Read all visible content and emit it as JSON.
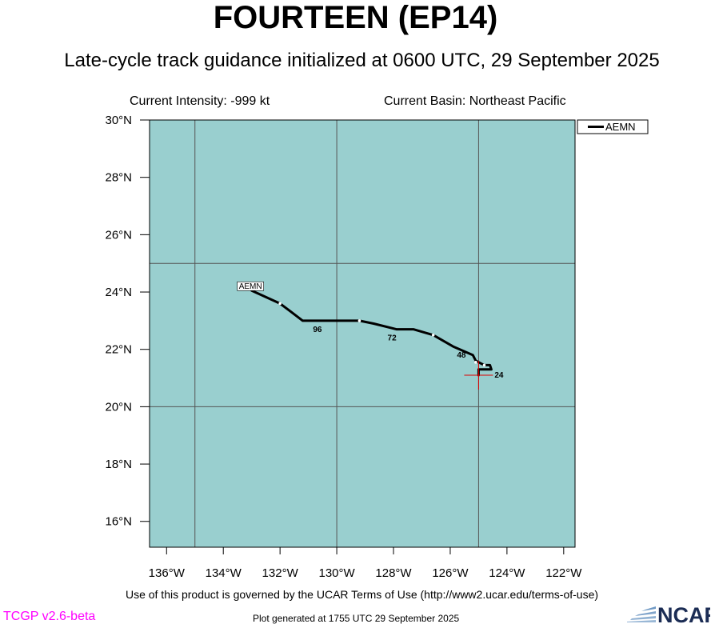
{
  "header": {
    "title": "FOURTEEN (EP14)",
    "subtitle": "Late-cycle track guidance initialized at 0600 UTC, 29 September 2025",
    "intensity": "Current Intensity: -999 kt",
    "basin": "Current Basin: Northeast Pacific"
  },
  "footer": {
    "terms": "Use of this product is governed by the UCAR Terms of Use (http://www2.ucar.edu/terms-of-use)",
    "version": "TCGP v2.6-beta",
    "generated": "Plot generated at 1755 UTC   29 September 2025",
    "logo_text": "NCAR"
  },
  "chart_data": {
    "type": "line",
    "xlim": [
      -136.6,
      -121.6
    ],
    "ylim": [
      15.1,
      30.0
    ],
    "x_ticks": [
      {
        "value": -136,
        "label": "136°W"
      },
      {
        "value": -134,
        "label": "134°W"
      },
      {
        "value": -132,
        "label": "132°W"
      },
      {
        "value": -130,
        "label": "130°W"
      },
      {
        "value": -128,
        "label": "128°W"
      },
      {
        "value": -126,
        "label": "126°W"
      },
      {
        "value": -124,
        "label": "124°W"
      },
      {
        "value": -122,
        "label": "122°W"
      }
    ],
    "y_ticks": [
      {
        "value": 30,
        "label": "30°N"
      },
      {
        "value": 28,
        "label": "28°N"
      },
      {
        "value": 26,
        "label": "26°N"
      },
      {
        "value": 24,
        "label": "24°N"
      },
      {
        "value": 22,
        "label": "22°N"
      },
      {
        "value": 20,
        "label": "20°N"
      },
      {
        "value": 18,
        "label": "18°N"
      },
      {
        "value": 16,
        "label": "16°N"
      }
    ],
    "grid_lon": [
      -135,
      -130,
      -125
    ],
    "grid_lat": [
      25,
      20
    ],
    "grid": true,
    "legend_position": "top-right, outside plot",
    "colors": {
      "ocean": "#99cfcf",
      "track": "#000000",
      "grid": "#555555",
      "current_position": "#dd0000"
    },
    "current_position": {
      "lon": -125.0,
      "lat": 21.1
    },
    "series": [
      {
        "name": "AEMN",
        "label": "AEMN",
        "points": [
          {
            "lon": -125.0,
            "lat": 21.1
          },
          {
            "lon": -125.0,
            "lat": 21.3
          },
          {
            "lon": -124.55,
            "lat": 21.3
          },
          {
            "lon": -124.6,
            "lat": 21.45
          },
          {
            "lon": -124.8,
            "lat": 21.45
          },
          {
            "lon": -125.1,
            "lat": 21.6
          },
          {
            "lon": -125.2,
            "lat": 21.8
          },
          {
            "lon": -125.9,
            "lat": 22.1
          },
          {
            "lon": -126.6,
            "lat": 22.5
          },
          {
            "lon": -127.3,
            "lat": 22.7
          },
          {
            "lon": -127.9,
            "lat": 22.7
          },
          {
            "lon": -128.7,
            "lat": 22.9
          },
          {
            "lon": -129.2,
            "lat": 23.0
          },
          {
            "lon": -130.5,
            "lat": 23.0
          },
          {
            "lon": -131.2,
            "lat": 23.0
          },
          {
            "lon": -131.6,
            "lat": 23.3
          },
          {
            "lon": -132.0,
            "lat": 23.6
          },
          {
            "lon": -133.0,
            "lat": 24.05
          }
        ],
        "markers": [
          {
            "lon": -124.55,
            "lat": 21.3,
            "label": "24"
          },
          {
            "lon": -125.2,
            "lat": 21.8,
            "label": "48"
          },
          {
            "lon": -127.9,
            "lat": 22.7,
            "label": "72"
          },
          {
            "lon": -130.5,
            "lat": 23.0,
            "label": "96"
          }
        ],
        "tick_dots": [
          {
            "lon": -125.1,
            "lat": 21.55
          },
          {
            "lon": -124.8,
            "lat": 21.45
          },
          {
            "lon": -126.6,
            "lat": 22.5
          },
          {
            "lon": -129.2,
            "lat": 23.0
          },
          {
            "lon": -132.0,
            "lat": 23.6
          }
        ]
      }
    ]
  }
}
